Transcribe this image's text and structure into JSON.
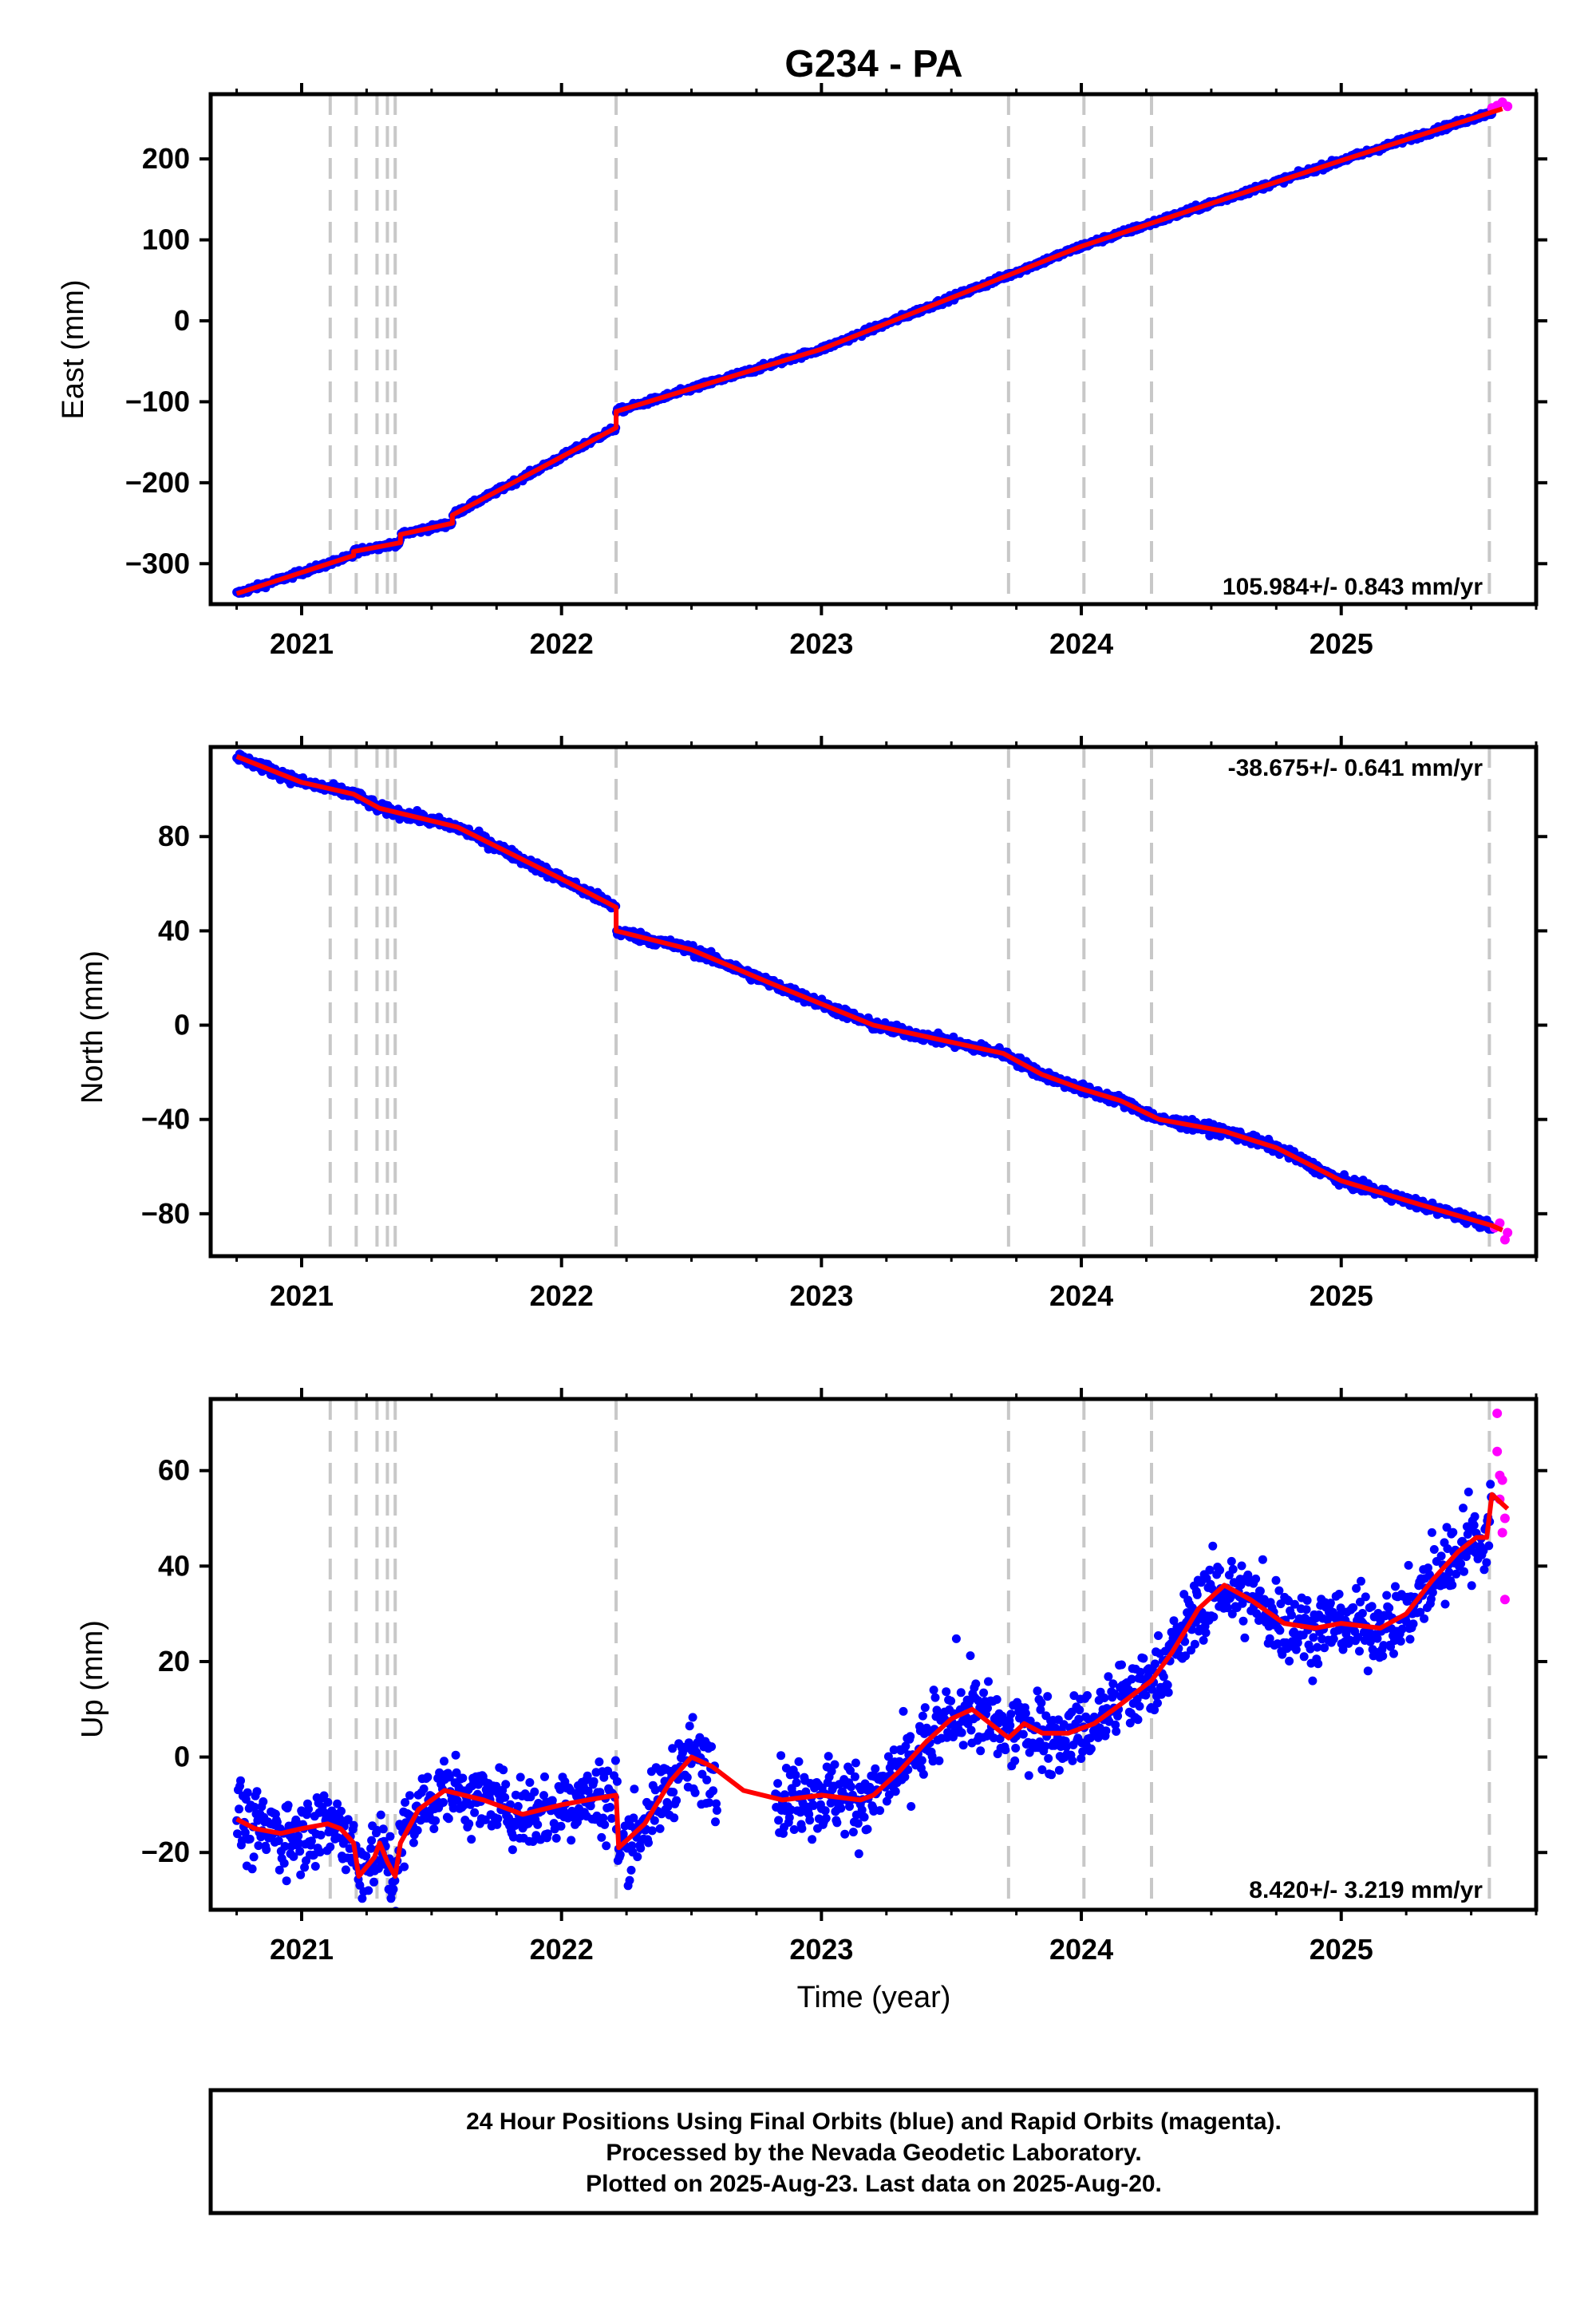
{
  "title": "G234 - PA",
  "colors": {
    "final_orbits": "#0000ff",
    "rapid_orbits": "#ff00ff",
    "model_fit": "#ff0000",
    "event_lines": "#c8c8c8",
    "frame": "#000000"
  },
  "chart_data": [
    {
      "type": "scatter",
      "ylabel": "East (mm)",
      "xlabel": "",
      "xlim": [
        2020.65,
        2025.75
      ],
      "ylim": [
        -350,
        280
      ],
      "yticks": [
        -300,
        -200,
        -100,
        0,
        100,
        200
      ],
      "yticklabels": [
        "−300",
        "−200",
        "−100",
        "0",
        "100",
        "200"
      ],
      "xticks": [
        2021,
        2022,
        2023,
        2024,
        2025
      ],
      "xticklabels": [
        "2021",
        "2022",
        "2023",
        "2024",
        "2025"
      ],
      "rate_label": "105.984+/- 0.843 mm/yr",
      "rate_position": "bottom-right",
      "series": [
        {
          "name": "Final Orbits",
          "color": "#0000ff",
          "x_range": [
            2020.75,
            2025.58
          ],
          "trend": {
            "t0": 2020.75,
            "v0": -337,
            "rate_mm_yr": 105.984,
            "offsets": [
              [
                2021.38,
                7
              ],
              [
                2021.6,
                8
              ],
              [
                2022.21,
                12
              ]
            ]
          },
          "noise_mm": 2.5
        },
        {
          "name": "Rapid Orbits",
          "color": "#ff00ff",
          "points": [
            [
              2025.58,
              263
            ],
            [
              2025.6,
              266
            ],
            [
              2025.62,
              270
            ],
            [
              2025.64,
              265
            ]
          ]
        },
        {
          "name": "Model",
          "color": "#ff0000",
          "line": [
            [
              2020.75,
              -337
            ],
            [
              2021.2,
              -290
            ],
            [
              2021.2,
              -285
            ],
            [
              2021.38,
              -274
            ],
            [
              2021.38,
              -264
            ],
            [
              2021.58,
              -250
            ],
            [
              2021.58,
              -240
            ],
            [
              2022.21,
              -132
            ],
            [
              2022.21,
              -112
            ],
            [
              2023.0,
              -35
            ],
            [
              2024.0,
              92
            ],
            [
              2025.0,
              198
            ],
            [
              2025.62,
              262
            ]
          ]
        }
      ],
      "event_lines_x": [
        2021.11,
        2021.21,
        2021.29,
        2021.33,
        2021.36,
        2022.21,
        2023.72,
        2024.01,
        2024.27,
        2025.57
      ]
    },
    {
      "type": "scatter",
      "ylabel": "North (mm)",
      "xlabel": "",
      "xlim": [
        2020.65,
        2025.75
      ],
      "ylim": [
        -98,
        118
      ],
      "yticks": [
        -80,
        -40,
        0,
        40,
        80
      ],
      "yticklabels": [
        "−80",
        "−40",
        "0",
        "40",
        "80"
      ],
      "xticks": [
        2021,
        2022,
        2023,
        2024,
        2025
      ],
      "xticklabels": [
        "2021",
        "2022",
        "2023",
        "2024",
        "2025"
      ],
      "rate_label": "-38.675+/- 0.641 mm/yr",
      "rate_position": "top-right",
      "series": [
        {
          "name": "Final Orbits",
          "color": "#0000ff",
          "x_range": [
            2020.75,
            2025.58
          ],
          "noise_mm": 1.5
        },
        {
          "name": "Rapid Orbits",
          "color": "#ff00ff",
          "points": [
            [
              2025.59,
              -86
            ],
            [
              2025.61,
              -84
            ],
            [
              2025.63,
              -91
            ],
            [
              2025.64,
              -88
            ]
          ]
        },
        {
          "name": "Model",
          "color": "#ff0000",
          "line": [
            [
              2020.75,
              114
            ],
            [
              2021.0,
              103
            ],
            [
              2021.2,
              98
            ],
            [
              2021.3,
              92
            ],
            [
              2021.45,
              88
            ],
            [
              2021.6,
              84
            ],
            [
              2022.0,
              62
            ],
            [
              2022.21,
              50
            ],
            [
              2022.21,
              40
            ],
            [
              2022.5,
              32
            ],
            [
              2022.8,
              18
            ],
            [
              2023.0,
              9
            ],
            [
              2023.2,
              0
            ],
            [
              2023.45,
              -6
            ],
            [
              2023.7,
              -12
            ],
            [
              2023.85,
              -21
            ],
            [
              2024.0,
              -27
            ],
            [
              2024.15,
              -32
            ],
            [
              2024.3,
              -40
            ],
            [
              2024.55,
              -45
            ],
            [
              2024.75,
              -52
            ],
            [
              2025.0,
              -66
            ],
            [
              2025.3,
              -76
            ],
            [
              2025.58,
              -85
            ],
            [
              2025.62,
              -87
            ]
          ]
        }
      ],
      "event_lines_x": [
        2021.11,
        2021.21,
        2021.29,
        2021.33,
        2021.36,
        2022.21,
        2023.72,
        2024.01,
        2024.27,
        2025.57
      ]
    },
    {
      "type": "scatter",
      "ylabel": "Up (mm)",
      "xlabel": "Time (year)",
      "xlim": [
        2020.65,
        2025.75
      ],
      "ylim": [
        -32,
        75
      ],
      "yticks": [
        -20,
        0,
        20,
        40,
        60
      ],
      "yticklabels": [
        "−20",
        "0",
        "20",
        "40",
        "60"
      ],
      "xticks": [
        2021,
        2022,
        2023,
        2024,
        2025
      ],
      "xticklabels": [
        "2021",
        "2022",
        "2023",
        "2024",
        "2025"
      ],
      "rate_label": "8.420+/- 3.219 mm/yr",
      "rate_position": "bottom-right",
      "series": [
        {
          "name": "Final Orbits",
          "color": "#0000ff",
          "x_range": [
            2020.75,
            2025.58
          ],
          "gap": [
            2022.6,
            2022.82
          ],
          "noise_mm": 5.5
        },
        {
          "name": "Rapid Orbits",
          "color": "#ff00ff",
          "points": [
            [
              2025.6,
              72
            ],
            [
              2025.6,
              64
            ],
            [
              2025.61,
              59
            ],
            [
              2025.62,
              58
            ],
            [
              2025.61,
              54
            ],
            [
              2025.63,
              50
            ],
            [
              2025.62,
              47
            ],
            [
              2025.63,
              33
            ]
          ]
        },
        {
          "name": "Model",
          "color": "#ff0000",
          "line": [
            [
              2020.75,
              -13
            ],
            [
              2020.82,
              -15
            ],
            [
              2020.92,
              -16
            ],
            [
              2021.0,
              -15
            ],
            [
              2021.1,
              -14
            ],
            [
              2021.15,
              -15
            ],
            [
              2021.2,
              -18
            ],
            [
              2021.22,
              -25
            ],
            [
              2021.28,
              -21
            ],
            [
              2021.3,
              -18
            ],
            [
              2021.33,
              -22
            ],
            [
              2021.36,
              -25
            ],
            [
              2021.38,
              -18
            ],
            [
              2021.45,
              -11
            ],
            [
              2021.55,
              -7
            ],
            [
              2021.7,
              -9
            ],
            [
              2021.85,
              -12
            ],
            [
              2022.0,
              -10
            ],
            [
              2022.1,
              -9
            ],
            [
              2022.21,
              -8
            ],
            [
              2022.22,
              -19
            ],
            [
              2022.32,
              -14
            ],
            [
              2022.42,
              -5
            ],
            [
              2022.5,
              0
            ],
            [
              2022.58,
              -2
            ],
            [
              2022.7,
              -7
            ],
            [
              2022.85,
              -9
            ],
            [
              2023.0,
              -8
            ],
            [
              2023.15,
              -9
            ],
            [
              2023.2,
              -8
            ],
            [
              2023.3,
              -3
            ],
            [
              2023.4,
              3
            ],
            [
              2023.5,
              8
            ],
            [
              2023.58,
              10
            ],
            [
              2023.65,
              7
            ],
            [
              2023.72,
              4
            ],
            [
              2023.78,
              7
            ],
            [
              2023.85,
              5
            ],
            [
              2023.95,
              5
            ],
            [
              2024.05,
              7
            ],
            [
              2024.15,
              11
            ],
            [
              2024.27,
              16
            ],
            [
              2024.35,
              22
            ],
            [
              2024.45,
              31
            ],
            [
              2024.55,
              36
            ],
            [
              2024.65,
              33
            ],
            [
              2024.78,
              28
            ],
            [
              2024.9,
              27
            ],
            [
              2025.0,
              28
            ],
            [
              2025.15,
              27
            ],
            [
              2025.25,
              30
            ],
            [
              2025.35,
              37
            ],
            [
              2025.45,
              43
            ],
            [
              2025.52,
              46
            ],
            [
              2025.56,
              46
            ],
            [
              2025.58,
              55
            ],
            [
              2025.64,
              52
            ]
          ]
        }
      ],
      "event_lines_x": [
        2021.11,
        2021.21,
        2021.29,
        2021.33,
        2021.36,
        2022.21,
        2023.72,
        2024.01,
        2024.27,
        2025.57
      ]
    }
  ],
  "footer": {
    "line1": "24 Hour Positions Using Final Orbits (blue) and Rapid Orbits (magenta).",
    "line2": "Processed by the Nevada Geodetic Laboratory.",
    "line3": "Plotted on 2025-Aug-23. Last data on 2025-Aug-20."
  }
}
